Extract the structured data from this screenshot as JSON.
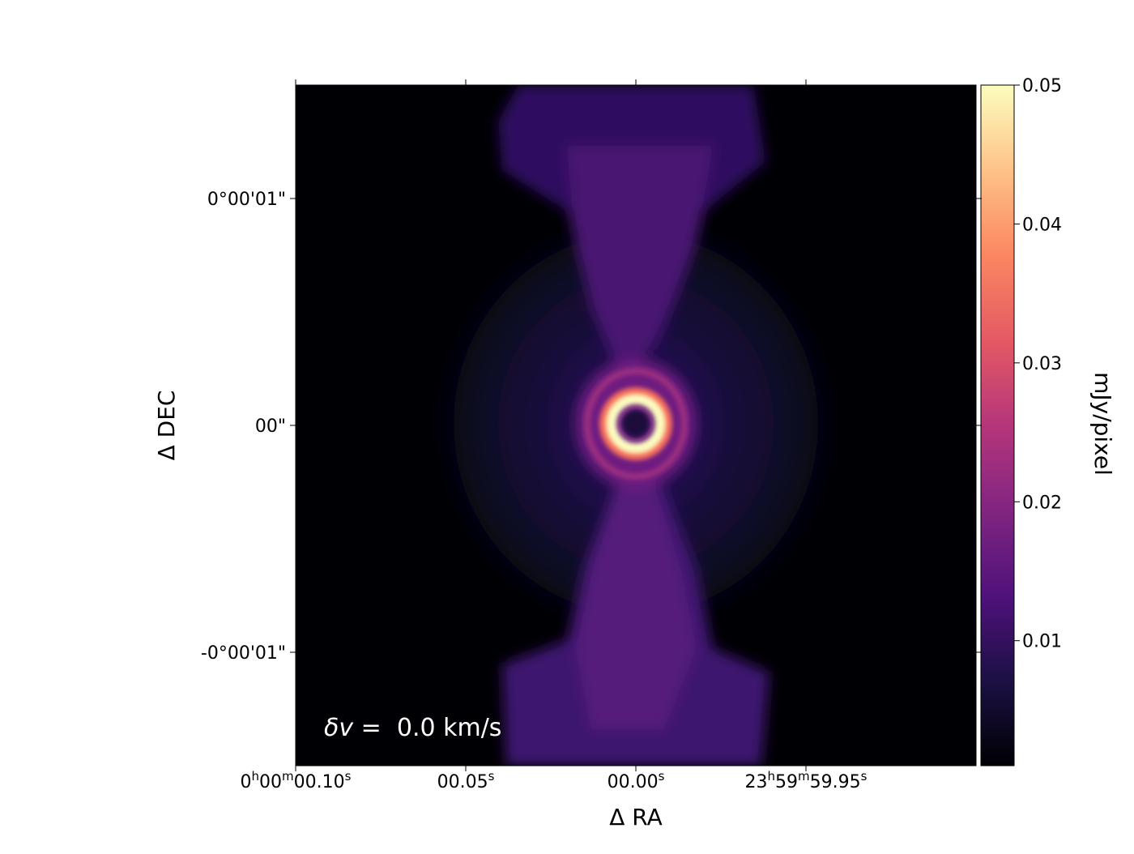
{
  "chart_data": {
    "type": "image",
    "xlabel": "Δ RA",
    "ylabel": "Δ DEC",
    "annotation": "δv =  0.0 km/s",
    "xlim": [
      0.1,
      -0.1
    ],
    "xticks": [
      {
        "value": 0.1,
        "label": "0h00m00.10s"
      },
      {
        "value": 0.05,
        "label": "00.05s"
      },
      {
        "value": 0.0,
        "label": "00.00s"
      },
      {
        "value": -0.05,
        "label": "23h59m59.95s"
      }
    ],
    "ylim": [
      -1.5,
      1.5
    ],
    "yticks": [
      {
        "value": 1,
        "label": "0°00'01\""
      },
      {
        "value": 0,
        "label": "00\""
      },
      {
        "value": -1,
        "label": "-0°00'01\""
      }
    ],
    "colorbar": {
      "label": "mJy/pixel",
      "cmap": "magma",
      "clim": [
        0.001,
        0.05
      ],
      "ticks": [
        0.01,
        0.02,
        0.03,
        0.04,
        0.05
      ]
    }
  }
}
